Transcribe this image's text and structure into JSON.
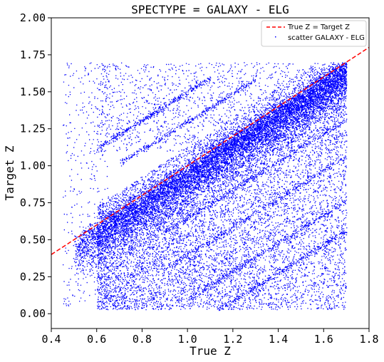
{
  "chart_data": {
    "type": "scatter",
    "title": "SPECTYPE = GALAXY - ELG",
    "xlabel": "True Z",
    "ylabel": "Target Z",
    "xlim": [
      0.4,
      1.8
    ],
    "ylim": [
      -0.1,
      2.0
    ],
    "xticks": [
      "0.4",
      "0.6",
      "0.8",
      "1.0",
      "1.2",
      "1.4",
      "1.6",
      "1.8"
    ],
    "yticks": [
      "0.00",
      "0.25",
      "0.50",
      "0.75",
      "1.00",
      "1.25",
      "1.50",
      "1.75",
      "2.00"
    ],
    "grid": false,
    "legend_position": "top-right",
    "series": [
      {
        "name": "True Z = Target Z",
        "kind": "line",
        "style": "dashed",
        "color": "#ff0000",
        "x": [
          0.4,
          1.8
        ],
        "y": [
          0.4,
          1.8
        ]
      },
      {
        "name": "scatter GALAXY - ELG",
        "kind": "scatter",
        "marker": "point",
        "color": "#0000ff",
        "x_range": [
          0.45,
          1.7
        ],
        "y_range": [
          0.02,
          1.7
        ],
        "density": "dense; concentrated along y = x and between true z 0.6 and 1.7, with diagonal streaks parallel to y = x"
      }
    ]
  }
}
